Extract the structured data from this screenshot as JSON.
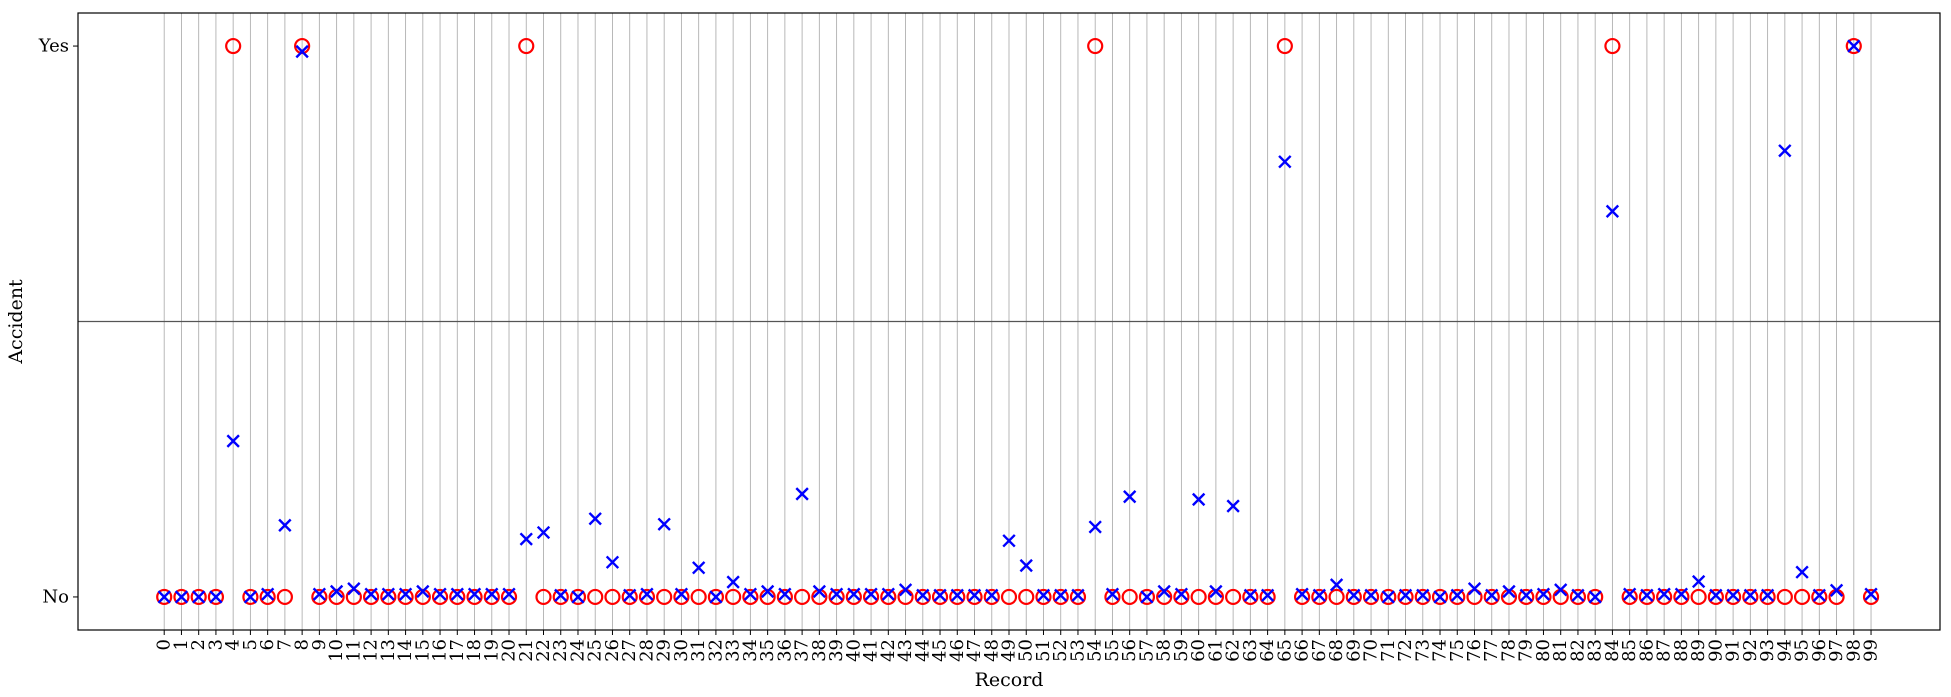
{
  "chart_data": {
    "type": "scatter",
    "xlabel": "Record",
    "ylabel": "Accident",
    "categories": [
      "No",
      "Yes"
    ],
    "x": [
      0,
      1,
      2,
      3,
      4,
      5,
      6,
      7,
      8,
      9,
      10,
      11,
      12,
      13,
      14,
      15,
      16,
      17,
      18,
      19,
      20,
      21,
      22,
      23,
      24,
      25,
      26,
      27,
      28,
      29,
      30,
      31,
      32,
      33,
      34,
      35,
      36,
      37,
      38,
      39,
      40,
      41,
      42,
      43,
      44,
      45,
      46,
      47,
      48,
      49,
      50,
      51,
      52,
      53,
      54,
      55,
      56,
      57,
      58,
      59,
      60,
      61,
      62,
      63,
      64,
      65,
      66,
      67,
      68,
      69,
      70,
      71,
      72,
      73,
      74,
      75,
      76,
      77,
      78,
      79,
      80,
      81,
      82,
      83,
      84,
      85,
      86,
      87,
      88,
      89,
      90,
      91,
      92,
      93,
      94,
      95,
      96,
      97,
      98,
      99
    ],
    "xlim": [
      -5,
      103
    ],
    "ylim": [
      -0.06,
      1.06
    ],
    "grid": "vertical",
    "hline": 0.5,
    "series": [
      {
        "marker": "circle",
        "color": "#ff0000",
        "values": [
          0,
          0,
          0,
          0,
          1,
          0,
          0,
          0,
          1,
          0,
          0,
          0,
          0,
          0,
          0,
          0,
          0,
          0,
          0,
          0,
          0,
          1,
          0,
          0,
          0,
          0,
          0,
          0,
          0,
          0,
          0,
          0,
          0,
          0,
          0,
          0,
          0,
          0,
          0,
          0,
          0,
          0,
          0,
          0,
          0,
          0,
          0,
          0,
          0,
          0,
          0,
          0,
          0,
          0,
          1,
          0,
          0,
          0,
          0,
          0,
          0,
          0,
          0,
          0,
          0,
          1,
          0,
          0,
          0,
          0,
          0,
          0,
          0,
          0,
          0,
          0,
          0,
          0,
          0,
          0,
          0,
          0,
          0,
          0,
          1,
          0,
          0,
          0,
          0,
          0,
          0,
          0,
          0,
          0,
          0,
          0,
          0,
          0,
          1,
          0
        ]
      },
      {
        "marker": "x",
        "color": "#0000ff",
        "values": [
          0,
          0,
          0,
          0,
          0.283,
          0,
          0.005,
          0.13,
          0.99,
          0.005,
          0.01,
          0.015,
          0.005,
          0.005,
          0.005,
          0.01,
          0.005,
          0.005,
          0.005,
          0.005,
          0.005,
          0.105,
          0.117,
          0.003,
          0.0,
          0.142,
          0.063,
          0.003,
          0.005,
          0.132,
          0.005,
          0.053,
          0.0,
          0.027,
          0.005,
          0.01,
          0.005,
          0.187,
          0.01,
          0.005,
          0.005,
          0.005,
          0.005,
          0.013,
          0.003,
          0.003,
          0.003,
          0.003,
          0.003,
          0.102,
          0.057,
          0.003,
          0.003,
          0.003,
          0.127,
          0.005,
          0.182,
          0.0,
          0.01,
          0.005,
          0.177,
          0.01,
          0.165,
          0.003,
          0.003,
          0.79,
          0.005,
          0.003,
          0.022,
          0.003,
          0.003,
          0.0,
          0.003,
          0.003,
          0.0,
          0.003,
          0.015,
          0.003,
          0.01,
          0.003,
          0.005,
          0.013,
          0.003,
          0.0,
          0.7,
          0.005,
          0.003,
          0.005,
          0.005,
          0.028,
          0.003,
          0.003,
          0.003,
          0.003,
          0.81,
          0.045,
          0.003,
          0.012,
          1.0,
          0.005
        ]
      }
    ]
  }
}
